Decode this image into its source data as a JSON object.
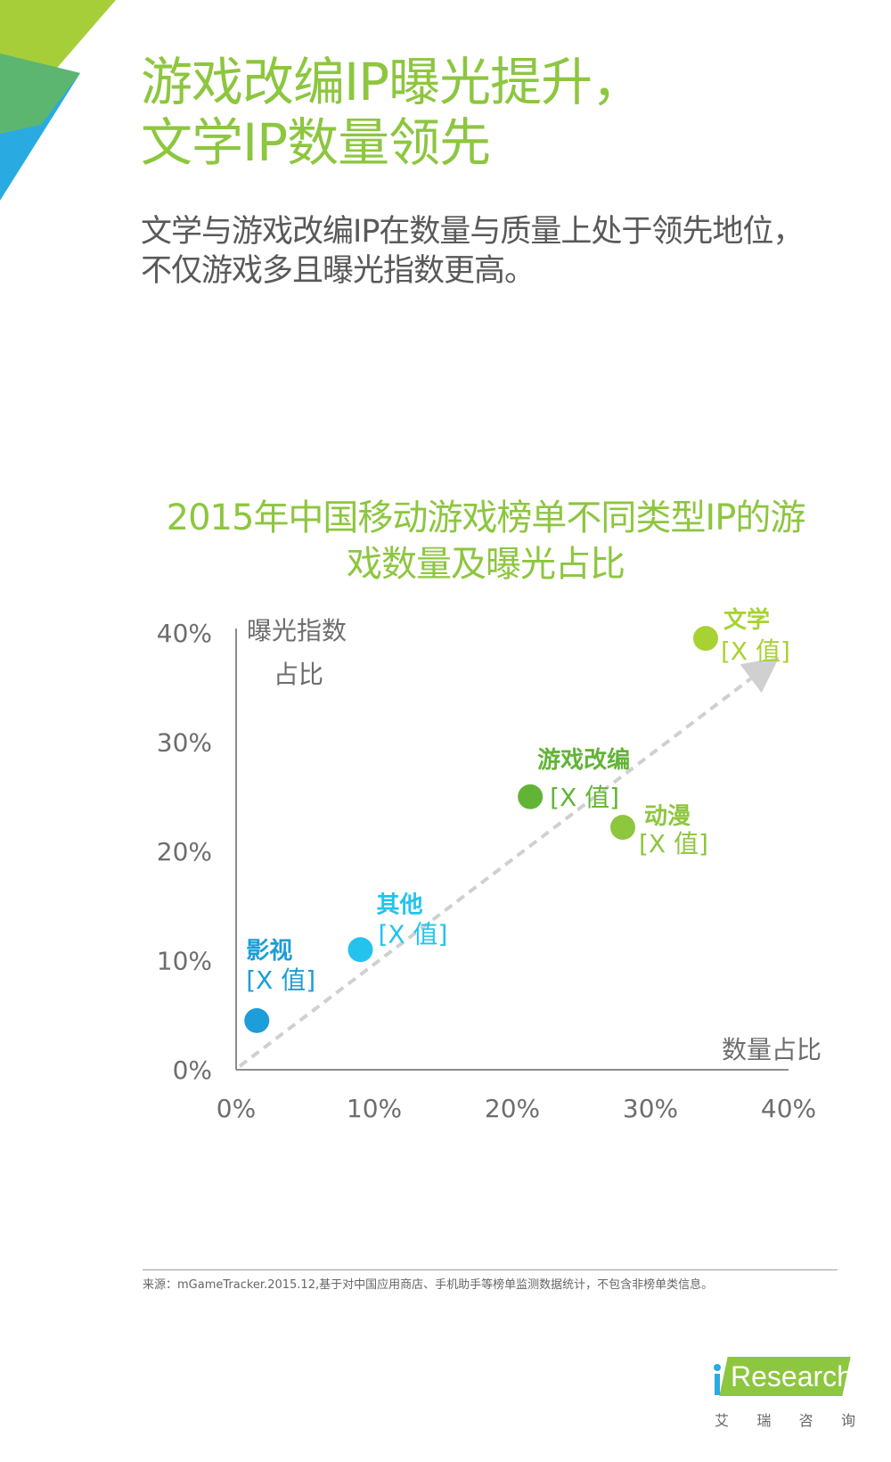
{
  "header": {
    "title_lines": [
      "游戏改编IP曝光提升，",
      "文学IP数量领先"
    ],
    "subtitle_lines": [
      "文学与游戏改编IP在数量与质量上处于领先地位，",
      "不仅游戏多且曝光指数更高。"
    ]
  },
  "chart_data": {
    "type": "scatter",
    "title_lines": [
      "2015年中国移动游戏榜单不同类型IP的游",
      "戏数量及曝光占比"
    ],
    "xlabel": "数量占比",
    "ylabel_lines": [
      "曝光指数",
      "占比"
    ],
    "xlim": [
      0,
      40
    ],
    "ylim": [
      0,
      40
    ],
    "x_ticks": [
      "0%",
      "10%",
      "20%",
      "30%",
      "40%"
    ],
    "y_ticks": [
      "0%",
      "10%",
      "20%",
      "30%",
      "40%"
    ],
    "points": [
      {
        "name": "影视",
        "value_label": "[X 值]",
        "x": 1.5,
        "y": 4.5,
        "color": "#1b9ed9"
      },
      {
        "name": "其他",
        "value_label": "[X 值]",
        "x": 9,
        "y": 11,
        "color": "#23c3ee"
      },
      {
        "name": "游戏改编",
        "value_label": "[X 值]",
        "x": 21.3,
        "y": 25,
        "color": "#62b436"
      },
      {
        "name": "动漫",
        "value_label": "[X 值]",
        "x": 28,
        "y": 22.2,
        "color": "#8dc63f"
      },
      {
        "name": "文学",
        "value_label": "[X 值]",
        "x": 34,
        "y": 39.5,
        "color": "#a8d234"
      }
    ],
    "trend": {
      "from": [
        0,
        0
      ],
      "to": [
        38.5,
        37
      ]
    }
  },
  "footer": {
    "source": "来源：mGameTracker.2015.12,基于对中国应用商店、手机助手等榜单监测数据统计，不包含非榜单类信息。"
  },
  "logo": {
    "word": "Research",
    "cn": [
      "艾",
      "瑞",
      "咨",
      "询"
    ]
  },
  "colors": {
    "accent_green": "#8dc63f",
    "accent_blue": "#29abe2",
    "axis": "#8c8c8c",
    "trend": "#d0d0d0"
  }
}
